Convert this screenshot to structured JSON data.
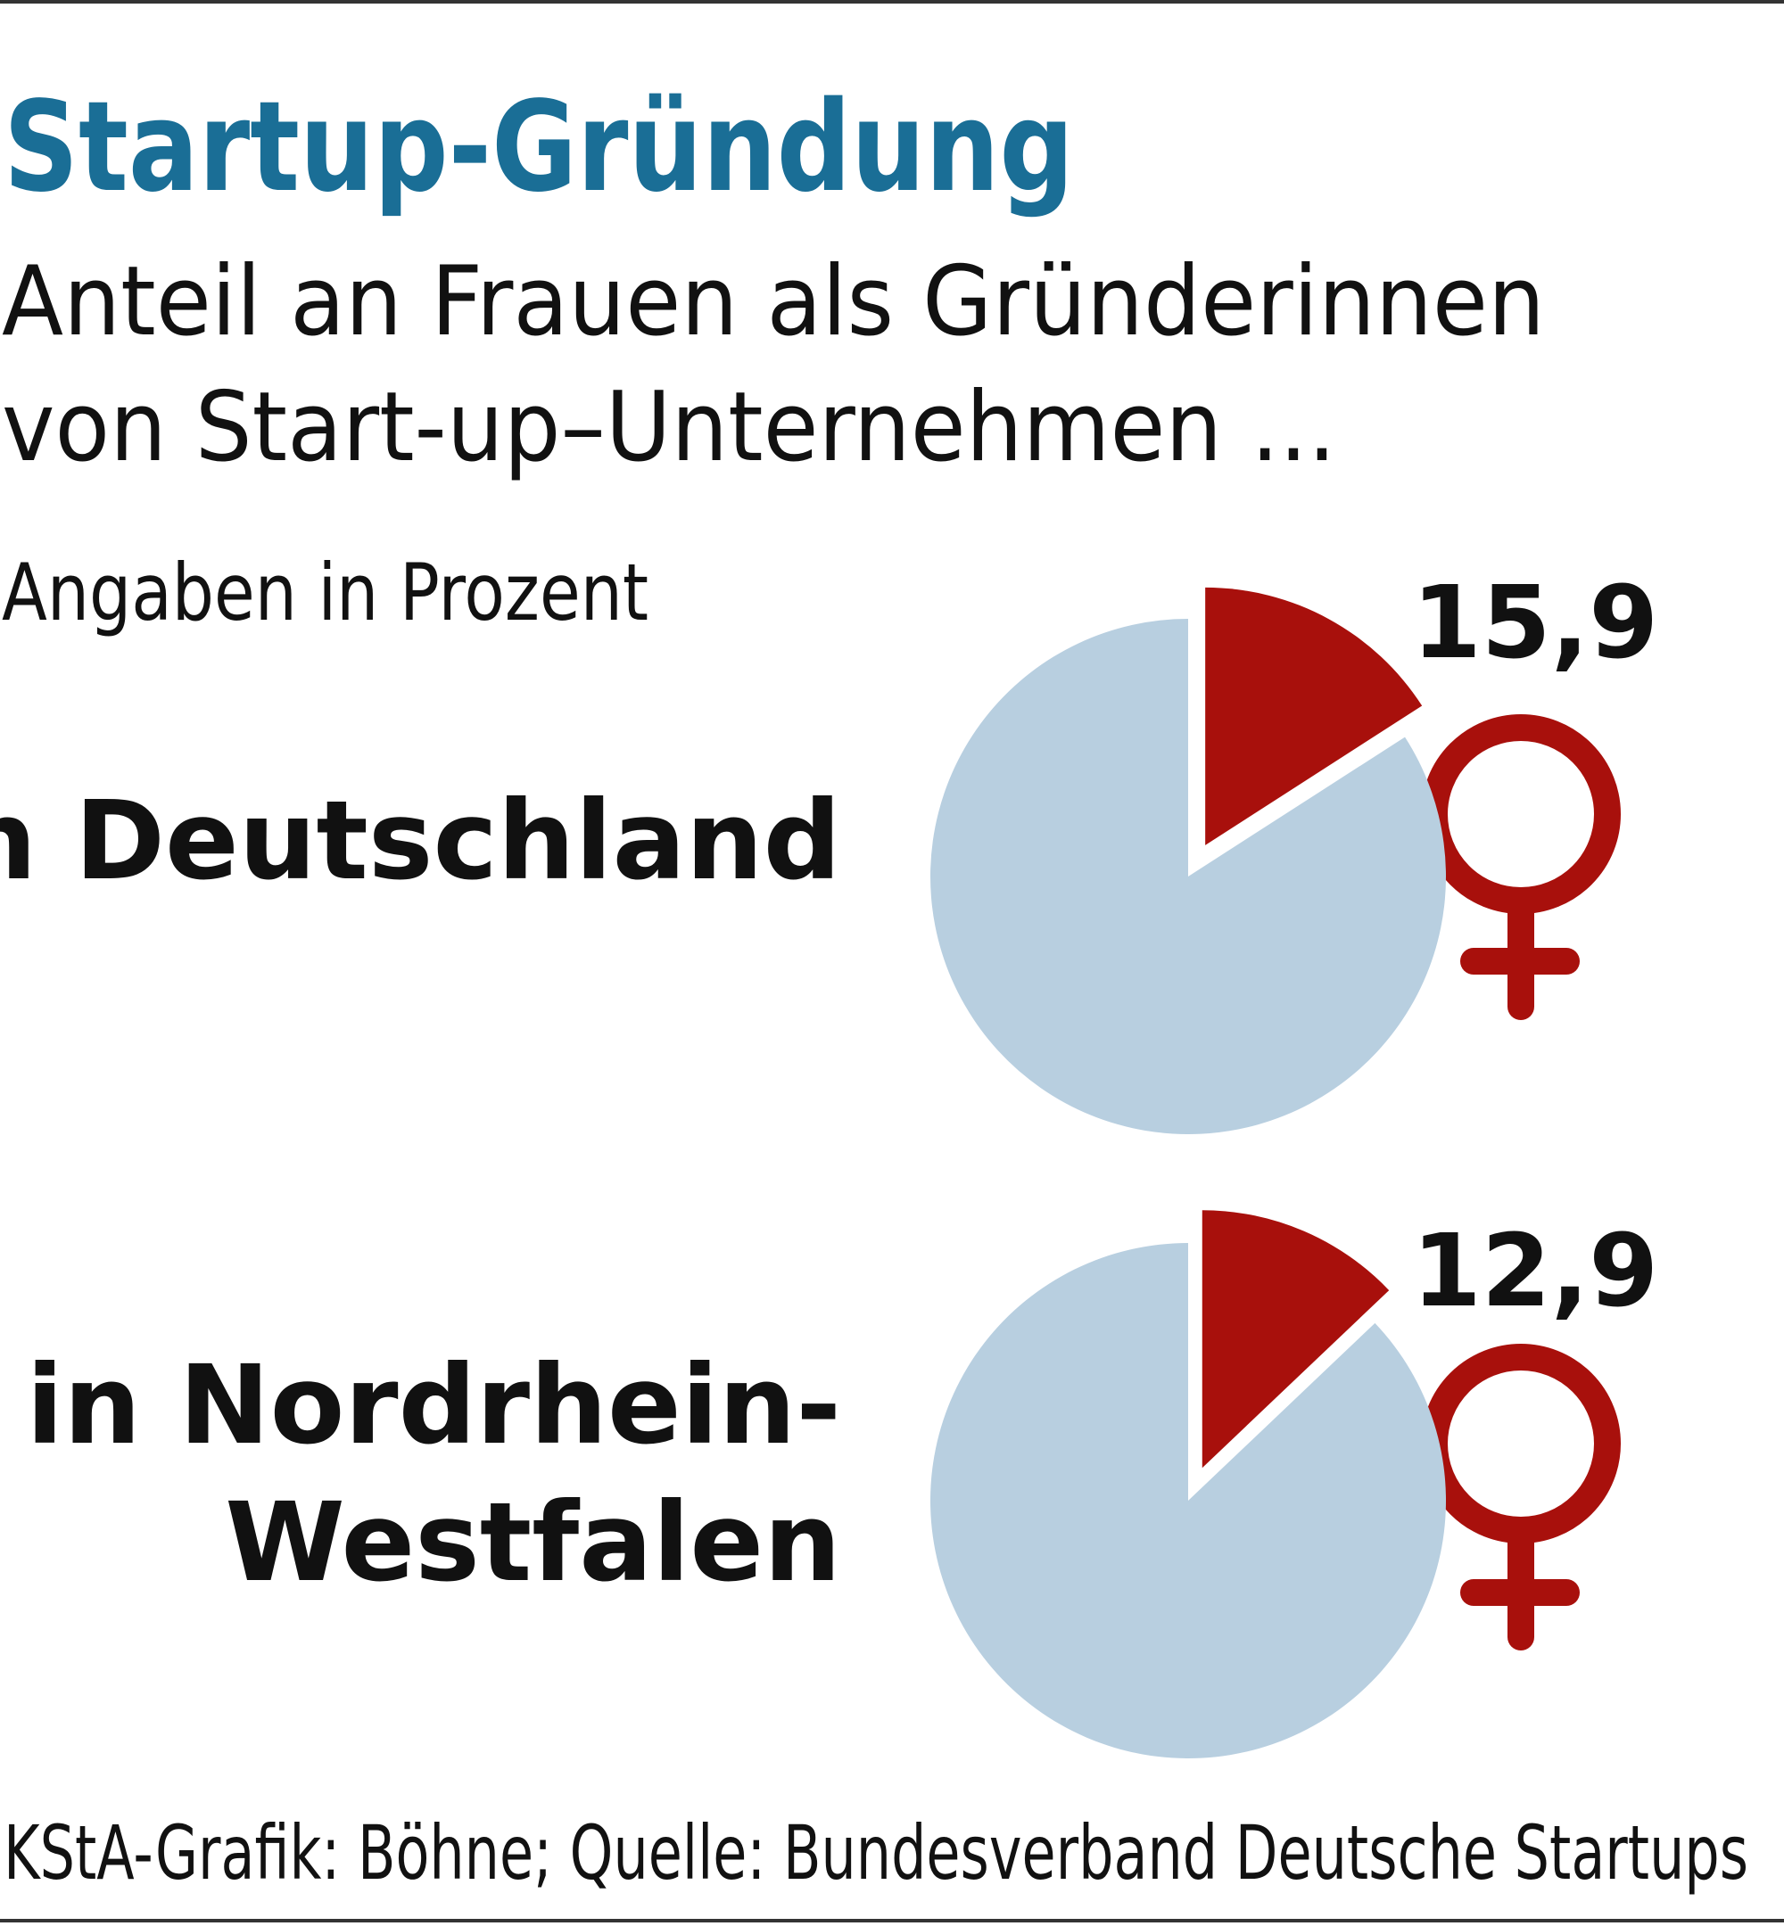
{
  "header": {
    "title": "Startup-Gründung",
    "subtitle": [
      "Anteil an Frauen als Gründerinnen",
      "von Start-up–Unternehmen ..."
    ],
    "note": "Angaben in Prozent"
  },
  "chart_data": [
    {
      "type": "pie",
      "title": [
        "... in Deutschland"
      ],
      "values": [
        15.9,
        84.1
      ],
      "value_labels": [
        "15,9",
        null
      ],
      "colors": [
        "#a8100c",
        "#b8cfe0"
      ]
    },
    {
      "type": "pie",
      "title": [
        "... in Nordrhein-",
        "Westfalen"
      ],
      "values": [
        12.9,
        87.1
      ],
      "value_labels": [
        "12,9",
        null
      ],
      "colors": [
        "#a8100c",
        "#b8cfe0"
      ]
    }
  ],
  "source": "KStA-Grafik: Böhne; Quelle: Bundesverband Deutsche Startups"
}
